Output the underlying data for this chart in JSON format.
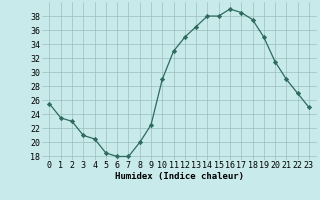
{
  "x": [
    0,
    1,
    2,
    3,
    4,
    5,
    6,
    7,
    8,
    9,
    10,
    11,
    12,
    13,
    14,
    15,
    16,
    17,
    18,
    19,
    20,
    21,
    22,
    23
  ],
  "y": [
    25.5,
    23.5,
    23.0,
    21.0,
    20.5,
    18.5,
    18.0,
    18.0,
    20.0,
    22.5,
    29.0,
    33.0,
    35.0,
    36.5,
    38.0,
    38.0,
    39.0,
    38.5,
    37.5,
    35.0,
    31.5,
    29.0,
    27.0,
    25.0
  ],
  "line_color": "#2e6b5e",
  "marker": "D",
  "marker_size": 2.2,
  "bg_color": "#c8eaea",
  "grid_color": "#9bbfbf",
  "xlabel": "Humidex (Indice chaleur)",
  "ylim": [
    17.5,
    40.0
  ],
  "yticks": [
    18,
    20,
    22,
    24,
    26,
    28,
    30,
    32,
    34,
    36,
    38
  ],
  "xticks": [
    0,
    1,
    2,
    3,
    4,
    5,
    6,
    7,
    8,
    9,
    10,
    11,
    12,
    13,
    14,
    15,
    16,
    17,
    18,
    19,
    20,
    21,
    22,
    23
  ],
  "xlabel_fontsize": 6.5,
  "tick_fontsize": 6.0,
  "line_width": 0.9
}
